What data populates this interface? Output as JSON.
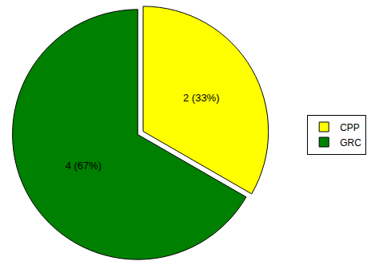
{
  "chart_data": {
    "type": "pie",
    "categories": [
      "CPP",
      "GRC"
    ],
    "values": [
      2,
      4
    ],
    "value_labels": [
      "2 (33%)",
      "4 (67%)"
    ],
    "colors": [
      "#ffff00",
      "#008000"
    ],
    "data_labels": true,
    "legend": "right"
  }
}
